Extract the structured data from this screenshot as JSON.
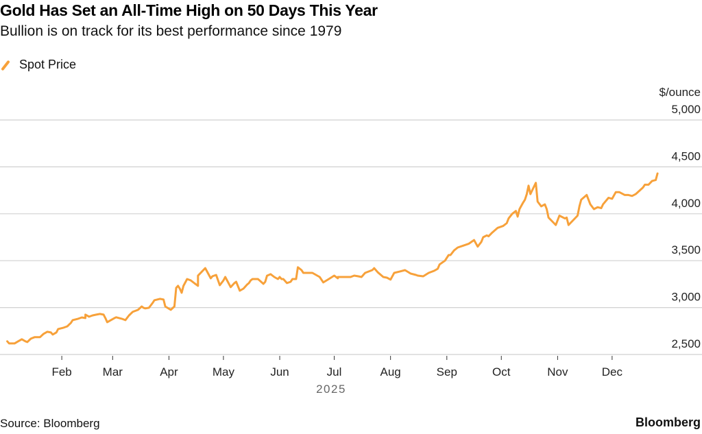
{
  "header": {
    "title": "Gold Has Set an All-Time High on 50 Days This Year",
    "subtitle": "Bullion is on track for its best performance since 1979"
  },
  "legend": [
    {
      "label": "Spot Price",
      "icon": "diagonal-line-icon",
      "color": "#f7a13a"
    }
  ],
  "footer": {
    "source": "Source: Bloomberg",
    "brand": "Bloomberg"
  },
  "chart_data": {
    "type": "line",
    "title": "Gold Has Set an All-Time High on 50 Days This Year",
    "subtitle": "Bullion is on track for its best performance since 1979",
    "xlabel": "2025",
    "ylabel": "$/ounce",
    "unit_label": "$/ounce",
    "ylim": [
      2500,
      5000
    ],
    "yticks": [
      2500,
      3000,
      3500,
      4000,
      4500,
      5000
    ],
    "ytick_labels": [
      "2,500",
      "3,000",
      "3,500",
      "4,000",
      "4,500",
      "5,000"
    ],
    "xlim_day_of_year": [
      0,
      365
    ],
    "xticks_day_of_year": [
      31,
      59,
      90,
      120,
      151,
      181,
      212,
      243,
      273,
      304,
      334
    ],
    "xtick_labels": [
      "Feb",
      "Mar",
      "Apr",
      "May",
      "Jun",
      "Jul",
      "Aug",
      "Sep",
      "Oct",
      "Nov",
      "Dec"
    ],
    "year_label": "2025",
    "grid": true,
    "legend_position": "top-left",
    "series": [
      {
        "name": "Spot Price",
        "color": "#f7a13a",
        "x_day_of_year": [
          1,
          2,
          5,
          7,
          9,
          11,
          12,
          14,
          16,
          18,
          19,
          21,
          23,
          25,
          26,
          28,
          29,
          32,
          34,
          36,
          37,
          40,
          42,
          44,
          44,
          46,
          48,
          50,
          52,
          54,
          55,
          56,
          58,
          60,
          61,
          64,
          66,
          68,
          70,
          71,
          73,
          75,
          76,
          77,
          79,
          81,
          82,
          85,
          87,
          88,
          91,
          93,
          94,
          95,
          96,
          97,
          98,
          100,
          102,
          104,
          106,
          106,
          110,
          113,
          114,
          116,
          118,
          120,
          121,
          124,
          126,
          127,
          129,
          131,
          133,
          134,
          135,
          136,
          139,
          142,
          143,
          144,
          146,
          148,
          150,
          151,
          152,
          153,
          155,
          157,
          158,
          160,
          161,
          163,
          164,
          166,
          169,
          173,
          175,
          178,
          181,
          183,
          183,
          187,
          190,
          192,
          194,
          196,
          198,
          202,
          203,
          205,
          208,
          210,
          212,
          214,
          217,
          220,
          223,
          226,
          227,
          230,
          233,
          236,
          238,
          239,
          242,
          244,
          245,
          247,
          249,
          252,
          255,
          258,
          260,
          262,
          263,
          265,
          266,
          268,
          271,
          274,
          276,
          277,
          279,
          281,
          282,
          283,
          285,
          286,
          287,
          288,
          289,
          290,
          292,
          293,
          295,
          297,
          298,
          299,
          302,
          303,
          305,
          308,
          309,
          310,
          313,
          315,
          316,
          317,
          320,
          322,
          324,
          326,
          328,
          329,
          332,
          334,
          336,
          338,
          341,
          343,
          345,
          347,
          351,
          352,
          354,
          356,
          358,
          359
        ],
        "values": [
          2640,
          2618,
          2618,
          2640,
          2662,
          2640,
          2632,
          2669,
          2684,
          2684,
          2684,
          2720,
          2742,
          2735,
          2713,
          2735,
          2771,
          2786,
          2800,
          2837,
          2866,
          2881,
          2895,
          2888,
          2925,
          2903,
          2917,
          2925,
          2932,
          2925,
          2888,
          2844,
          2866,
          2888,
          2896,
          2881,
          2866,
          2917,
          2954,
          2961,
          2976,
          3012,
          2998,
          2991,
          2998,
          3049,
          3078,
          3093,
          3086,
          3012,
          2976,
          3012,
          3210,
          3232,
          3202,
          3158,
          3231,
          3304,
          3290,
          3260,
          3232,
          3340,
          3420,
          3312,
          3334,
          3348,
          3238,
          3289,
          3326,
          3218,
          3260,
          3275,
          3180,
          3202,
          3245,
          3260,
          3290,
          3304,
          3304,
          3253,
          3275,
          3340,
          3356,
          3326,
          3304,
          3326,
          3304,
          3304,
          3261,
          3275,
          3304,
          3304,
          3430,
          3400,
          3370,
          3370,
          3370,
          3326,
          3268,
          3304,
          3341,
          3312,
          3326,
          3326,
          3326,
          3341,
          3334,
          3326,
          3370,
          3400,
          3420,
          3376,
          3326,
          3319,
          3298,
          3370,
          3384,
          3399,
          3363,
          3348,
          3341,
          3333,
          3370,
          3392,
          3414,
          3460,
          3500,
          3560,
          3560,
          3610,
          3640,
          3660,
          3680,
          3720,
          3650,
          3700,
          3750,
          3770,
          3760,
          3800,
          3850,
          3870,
          3900,
          3950,
          4000,
          4030,
          3970,
          4050,
          4120,
          4150,
          4210,
          4300,
          4210,
          4250,
          4330,
          4130,
          4080,
          4100,
          4050,
          3960,
          3900,
          3880,
          3980,
          3950,
          3960,
          3880,
          3940,
          3980,
          4080,
          4150,
          4200,
          4100,
          4050,
          4070,
          4060,
          4100,
          4170,
          4160,
          4230,
          4230,
          4200,
          4200,
          4190,
          4210,
          4280,
          4310,
          4310,
          4350,
          4360,
          4430,
          4460
        ]
      }
    ]
  }
}
